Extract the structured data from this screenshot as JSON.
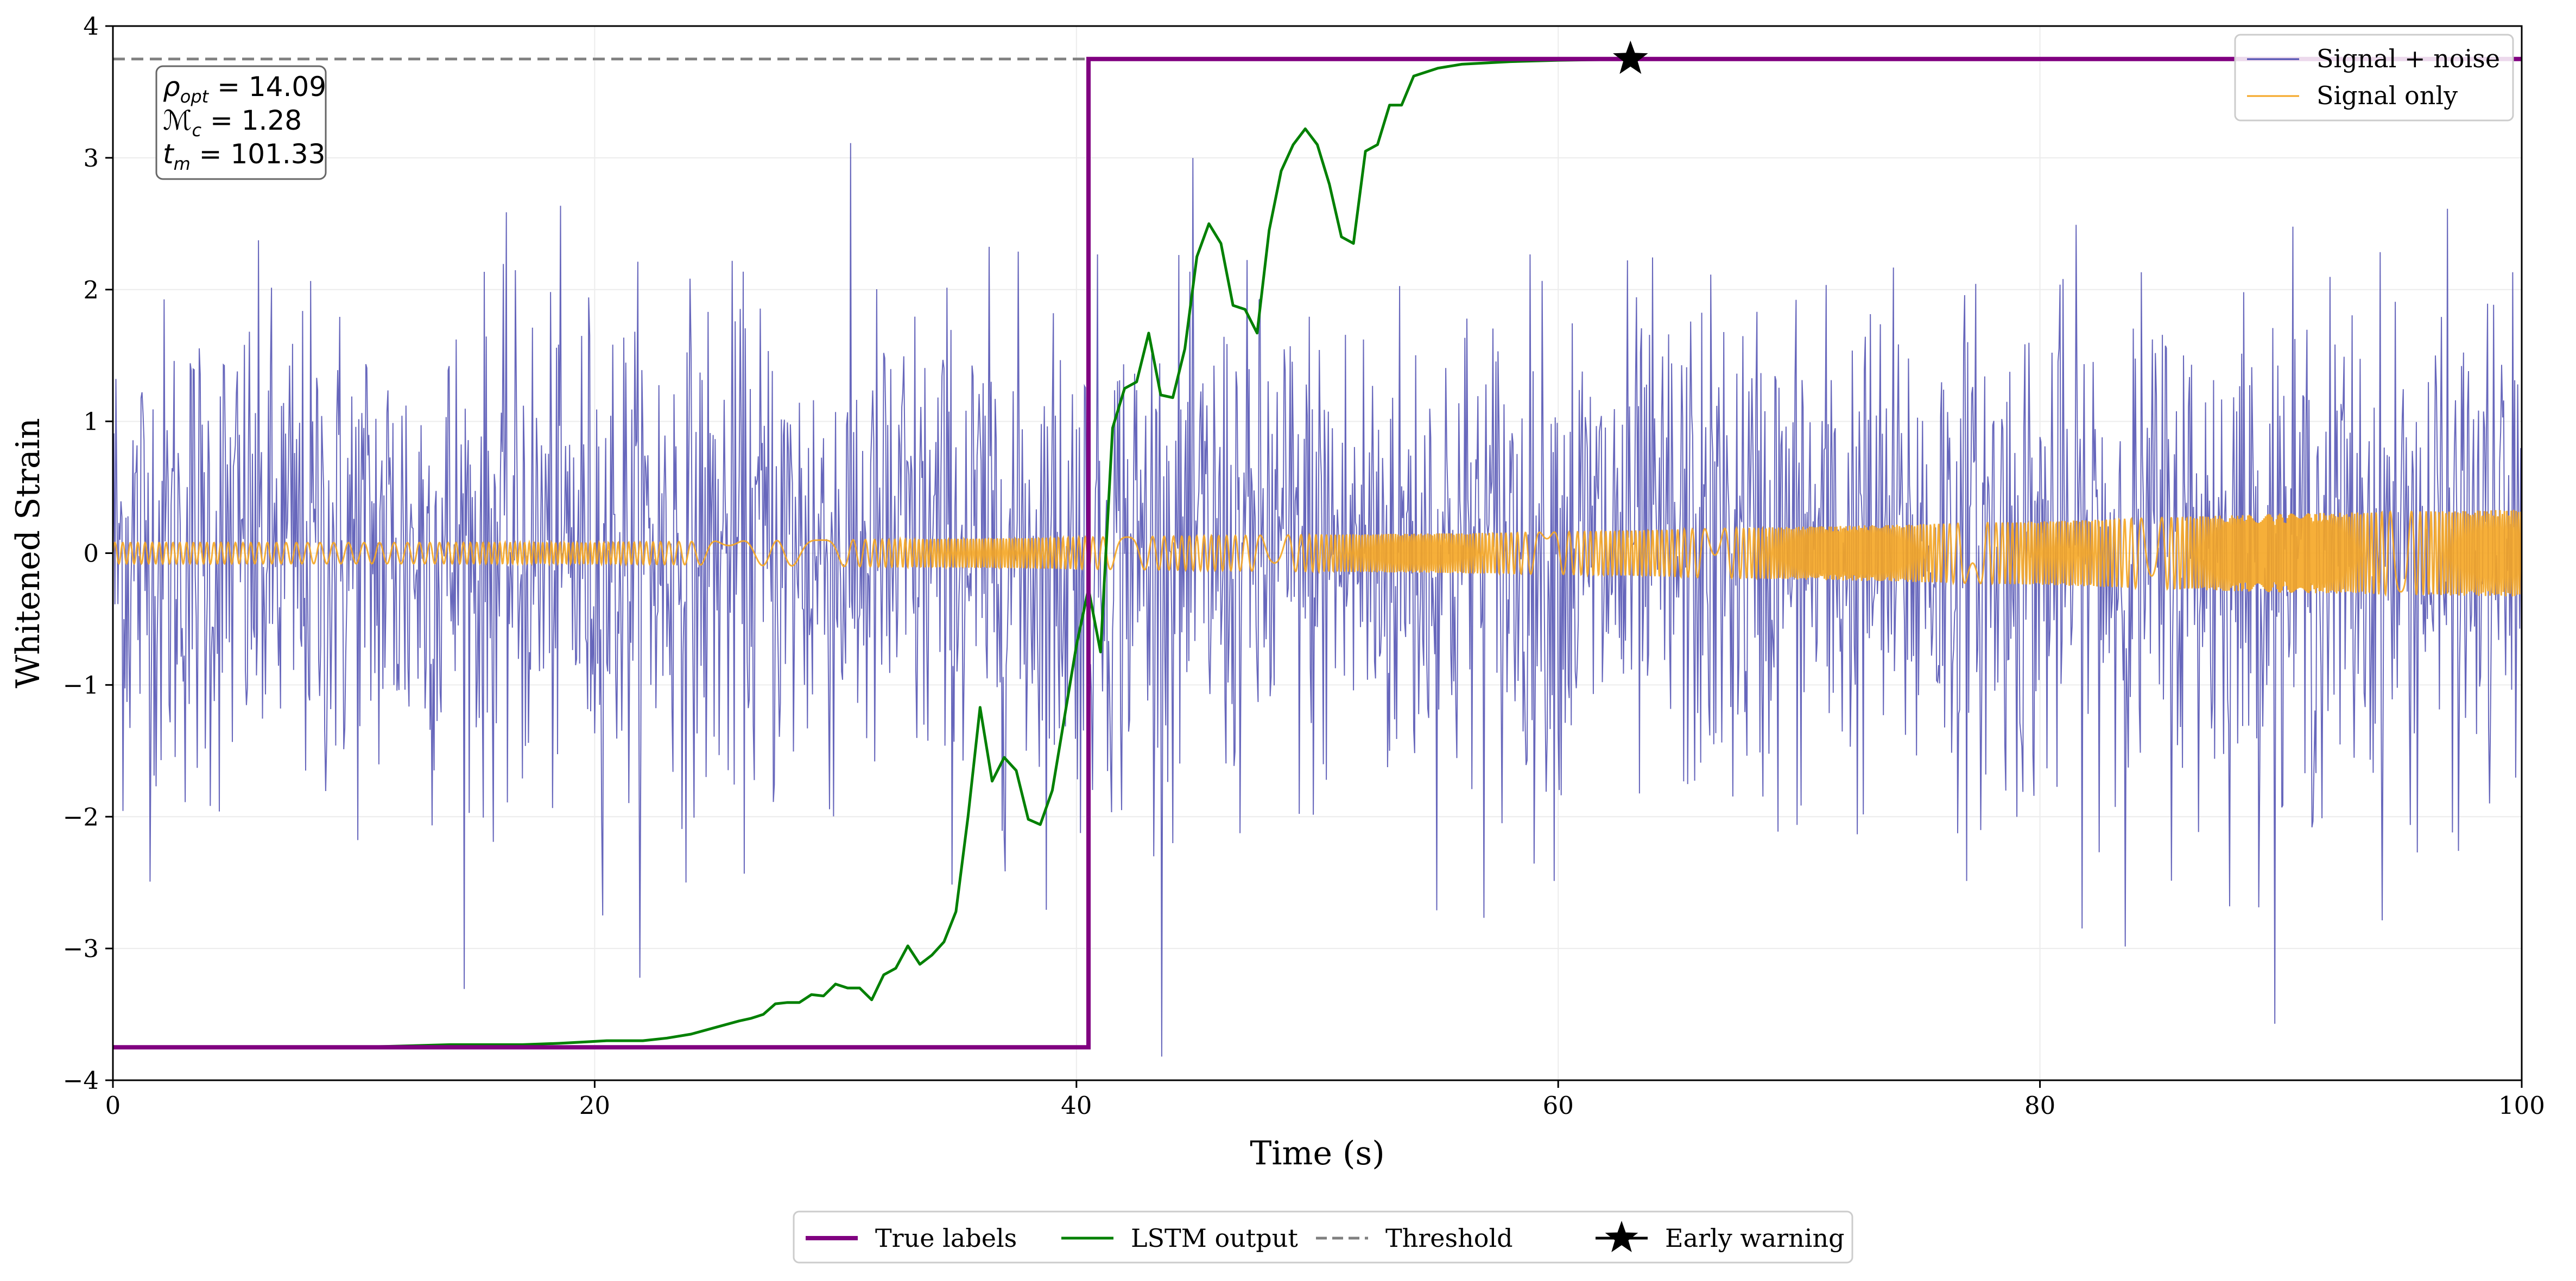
{
  "chart_data": {
    "type": "line",
    "xlabel": "Time (s)",
    "ylabel": "Whitened Strain",
    "xlim": [
      0,
      100
    ],
    "ylim": [
      -4,
      4
    ],
    "xticks": [
      0,
      20,
      40,
      60,
      80,
      100
    ],
    "yticks": [
      -4,
      -3,
      -2,
      -1,
      0,
      1,
      2,
      3,
      4
    ],
    "xtick_labels": [
      "0",
      "20",
      "40",
      "60",
      "80",
      "100"
    ],
    "ytick_labels": [
      "−4",
      "−3",
      "−2",
      "−1",
      "0",
      "1",
      "2",
      "3",
      "4"
    ],
    "grid": true,
    "colors": {
      "signal_noise": "#4c4cb0",
      "signal_only": "#f5a623",
      "true_labels": "#800080",
      "lstm": "#008000",
      "threshold": "#808080",
      "marker": "#000000"
    },
    "annotation": {
      "rho_label": "ρ",
      "rho_sub": "opt",
      "rho_value": " = 14.09",
      "mc_label": "ℳ",
      "mc_sub": "c",
      "mc_value": " = 1.28",
      "tm_label": "t",
      "tm_sub": "m",
      "tm_value": " = 101.33"
    },
    "noise_envelope": {
      "description": "Signal + noise whitened strain, approx. unit-variance noise",
      "typical_amplitude": 1.5,
      "max_peak": 3.5,
      "min_trough": -4.0
    },
    "signal_only": {
      "description": "Chirp signal, amplitude growing with time",
      "amplitude_points": [
        [
          0,
          0.08
        ],
        [
          20,
          0.08
        ],
        [
          40,
          0.12
        ],
        [
          60,
          0.16
        ],
        [
          70,
          0.2
        ],
        [
          80,
          0.24
        ],
        [
          90,
          0.3
        ],
        [
          100,
          0.33
        ]
      ]
    },
    "true_labels": {
      "x": [
        0,
        40.5,
        40.5,
        100
      ],
      "y": [
        -3.75,
        -3.75,
        3.75,
        3.75
      ]
    },
    "lstm_output": {
      "x": [
        0,
        10,
        14,
        17,
        18.5,
        19.5,
        20.5,
        22,
        23,
        24,
        25,
        26,
        26.5,
        27,
        27.5,
        28,
        28.5,
        29,
        29.5,
        30,
        30.5,
        31,
        31.5,
        32,
        32.5,
        33,
        33.5,
        34,
        34.5,
        35,
        35.5,
        36,
        36.5,
        37,
        37.5,
        38,
        38.5,
        39,
        39.5,
        40,
        40.5,
        41,
        41.5,
        42,
        42.5,
        43,
        43.5,
        44,
        44.5,
        45,
        45.5,
        46,
        46.5,
        47,
        47.5,
        48,
        48.5,
        49,
        49.5,
        50,
        50.5,
        51,
        51.5,
        52,
        52.5,
        53,
        53.5,
        54,
        55,
        56,
        57,
        58,
        60,
        62,
        63,
        100
      ],
      "y": [
        -3.75,
        -3.75,
        -3.73,
        -3.73,
        -3.72,
        -3.71,
        -3.7,
        -3.7,
        -3.68,
        -3.65,
        -3.6,
        -3.55,
        -3.53,
        -3.5,
        -3.42,
        -3.41,
        -3.41,
        -3.35,
        -3.36,
        -3.27,
        -3.3,
        -3.3,
        -3.39,
        -3.2,
        -3.15,
        -2.98,
        -3.12,
        -3.05,
        -2.95,
        -2.72,
        -2.0,
        -1.17,
        -1.73,
        -1.55,
        -1.65,
        -2.02,
        -2.06,
        -1.8,
        -1.25,
        -0.7,
        -0.27,
        -0.75,
        0.95,
        1.25,
        1.3,
        1.67,
        1.2,
        1.18,
        1.55,
        2.25,
        2.5,
        2.35,
        1.88,
        1.85,
        1.67,
        2.45,
        2.9,
        3.1,
        3.22,
        3.1,
        2.8,
        2.4,
        2.35,
        3.05,
        3.1,
        3.4,
        3.4,
        3.62,
        3.68,
        3.71,
        3.72,
        3.73,
        3.74,
        3.745,
        3.75,
        3.75
      ]
    },
    "threshold": {
      "y": 3.75
    },
    "early_warning": {
      "x": 63,
      "y": 3.75
    },
    "legend_top_right": [
      {
        "label": "Signal + noise",
        "series": "signal_noise"
      },
      {
        "label": "Signal only",
        "series": "signal_only"
      }
    ],
    "legend_bottom": [
      {
        "label": "True labels",
        "series": "true_labels"
      },
      {
        "label": "LSTM output",
        "series": "lstm"
      },
      {
        "label": "Threshold",
        "series": "threshold"
      },
      {
        "label": "Early warning",
        "series": "marker"
      }
    ]
  }
}
